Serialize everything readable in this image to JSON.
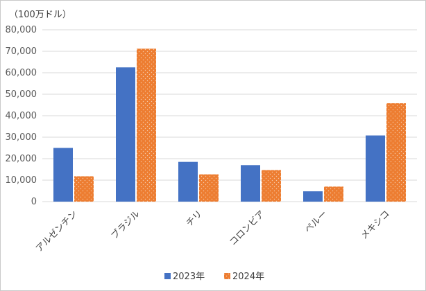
{
  "chart_data": {
    "type": "bar",
    "unit_label": "（100万ドル）",
    "categories": [
      "アルゼンチン",
      "ブラジル",
      "チリ",
      "コロンビア",
      "ペルー",
      "メキシコ"
    ],
    "series": [
      {
        "name": "2023年",
        "color": "#4472C4",
        "pattern": "solid",
        "values": [
          25000,
          62500,
          18500,
          17000,
          4800,
          30800
        ]
      },
      {
        "name": "2024年",
        "color": "#ED7D31",
        "pattern": "dotted",
        "values": [
          11800,
          71200,
          12700,
          14700,
          7000,
          45800
        ]
      }
    ],
    "ylim": [
      0,
      80000
    ],
    "y_ticks": [
      "0",
      "10,000",
      "20,000",
      "30,000",
      "40,000",
      "50,000",
      "60,000",
      "70,000",
      "80,000"
    ],
    "grid": true,
    "legend_position": "bottom"
  }
}
